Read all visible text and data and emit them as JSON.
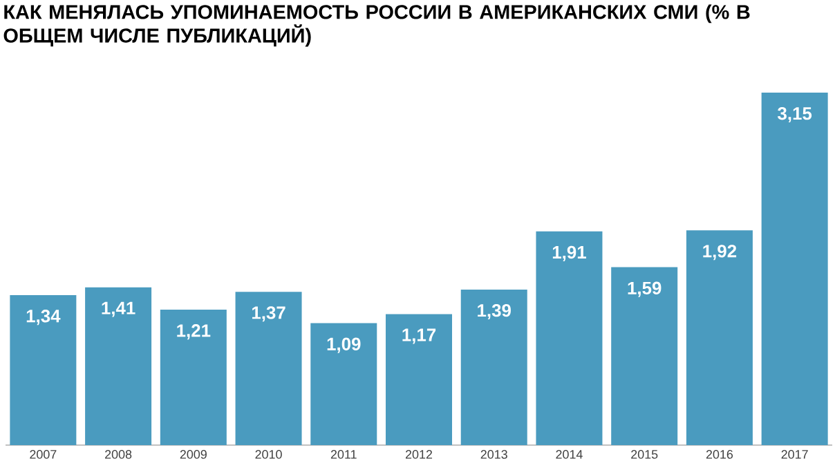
{
  "chart_data": {
    "type": "bar",
    "title": "КАК МЕНЯЛАСЬ УПОМИНАЕМОСТЬ РОССИИ В АМЕРИКАНСКИХ СМИ (% В ОБЩЕМ ЧИСЛЕ ПУБЛИКАЦИЙ)",
    "categories": [
      "2007",
      "2008",
      "2009",
      "2010",
      "2011",
      "2012",
      "2013",
      "2014",
      "2015",
      "2016",
      "2017"
    ],
    "values": [
      1.34,
      1.41,
      1.21,
      1.37,
      1.09,
      1.17,
      1.39,
      1.91,
      1.59,
      1.92,
      3.15
    ],
    "value_labels": [
      "1,34",
      "1,41",
      "1,21",
      "1,37",
      "1,09",
      "1,17",
      "1,39",
      "1,91",
      "1,59",
      "1,92",
      "3,15"
    ],
    "color": "#4a9bbf"
  }
}
